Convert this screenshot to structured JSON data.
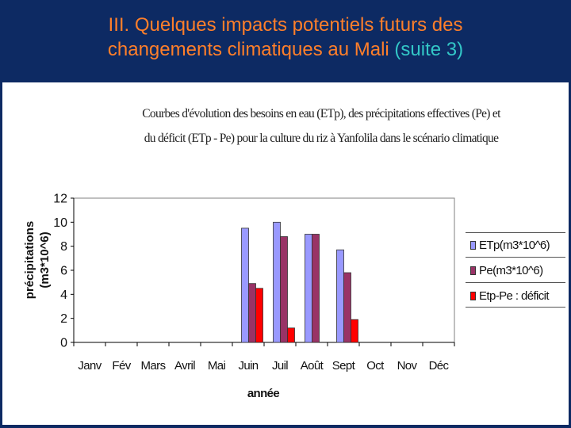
{
  "slide": {
    "title_line1": "III. Quelques impacts potentiels futurs des",
    "title_line2": "changements climatiques au Mali ",
    "title_suffix": "(suite 3)"
  },
  "chart_data": {
    "type": "bar",
    "title_line1": "Courbes d'évolution des besoins en eau (ETp), des précipitations effectives (Pe) et",
    "title_line2": "du déficit (ETp - Pe) pour la culture du riz à Yanfolila dans le scénario climatique",
    "ylabel_line1": "précipitations",
    "ylabel_line2": "(m3*10^6)",
    "xlabel": "année",
    "categories": [
      "Janv",
      "Fév",
      "Mars",
      "Avril",
      "Mai",
      "Juin",
      "Juil",
      "Août",
      "Sept",
      "Oct",
      "Nov",
      "Déc"
    ],
    "ylim": [
      0,
      12
    ],
    "yticks": [
      0,
      2,
      4,
      6,
      8,
      10,
      12
    ],
    "grid": false,
    "legend_position": "right",
    "series": [
      {
        "name": "ETp(m3*10^6)",
        "color": "#9999ff",
        "values": [
          0,
          0,
          0,
          0,
          0,
          9.5,
          10.0,
          9.0,
          7.7,
          0,
          0,
          0
        ]
      },
      {
        "name": "Pe(m3*10^6)",
        "color": "#993366",
        "values": [
          0,
          0,
          0,
          0,
          0,
          4.9,
          8.8,
          9.0,
          5.8,
          0,
          0,
          0
        ]
      },
      {
        "name": "Etp-Pe : déficit",
        "color": "#ff0000",
        "values": [
          0,
          0,
          0,
          0,
          0,
          4.5,
          1.2,
          0,
          1.9,
          0,
          0,
          0
        ]
      }
    ]
  }
}
